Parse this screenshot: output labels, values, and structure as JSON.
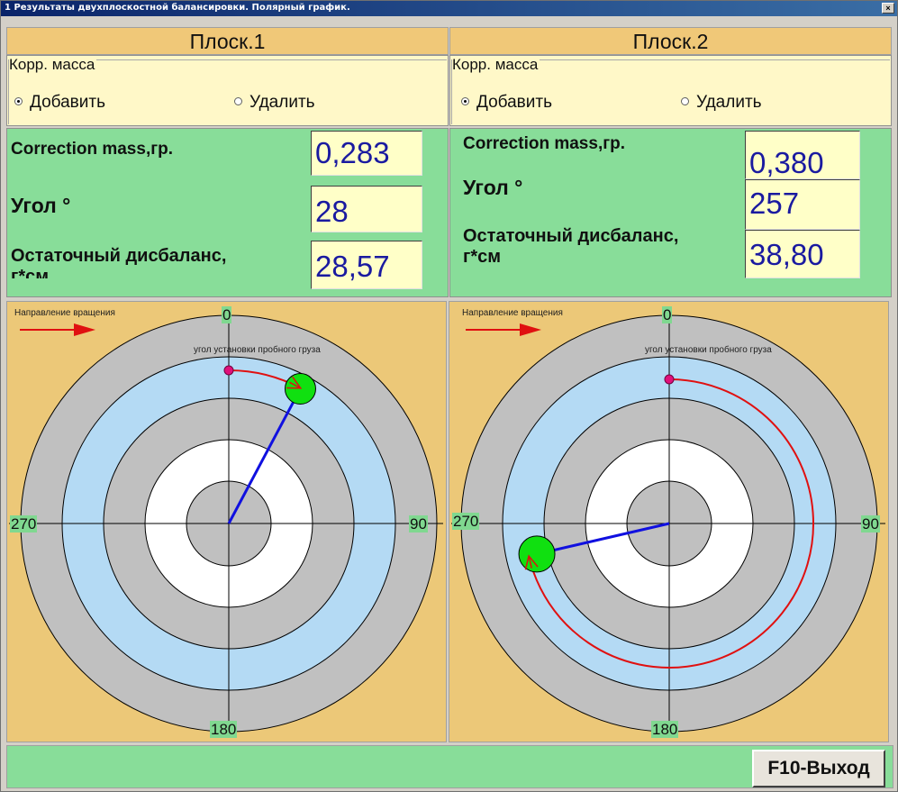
{
  "window": {
    "title": "1 Результаты двухплоскостной балансировки. Полярный график.",
    "close_glyph": "×"
  },
  "planes": [
    {
      "header": "Плоск.1",
      "mass_group_label": "Корр. масса",
      "options": {
        "add": "Добавить",
        "remove": "Удалить",
        "selected": "add"
      },
      "correction_label": "Correction mass,гр.",
      "correction_value": "0,283",
      "angle_label": "Угол   °",
      "angle_value": "28",
      "residual_label_line1": "Остаточный дисбаланс,",
      "residual_label_line2": "г*см",
      "residual_value": "28,57"
    },
    {
      "header": "Плоск.2",
      "mass_group_label": "Корр. масса",
      "options": {
        "add": "Добавить",
        "remove": "Удалить",
        "selected": "add"
      },
      "correction_label": "Correction mass,гр.",
      "correction_value": "0,380",
      "angle_label": "Угол   °",
      "angle_value": "257",
      "residual_label_line1": "Остаточный дисбаланс,",
      "residual_label_line2": "г*см",
      "residual_value": "38,80"
    }
  ],
  "polar": {
    "rotation_label": "Направление вращения",
    "trial_label": "угол установки пробного  груза",
    "angles": {
      "top": "0",
      "right": "90",
      "bottom": "180",
      "left": "270"
    },
    "colors": {
      "ring_gray": "#c0c0c0",
      "ring_blue": "#b4daf4",
      "ring_white": "#ffffff",
      "vector": "#1010e0",
      "arc": "#e01010",
      "weight": "#10e010",
      "trial_dot": "#e0107a"
    },
    "charts": [
      {
        "correction_angle_deg": 28,
        "trial_angle_deg": 0,
        "vector_ratio": 0.788
      },
      {
        "correction_angle_deg": 257,
        "trial_angle_deg": 0,
        "vector_ratio": 0.702
      }
    ]
  },
  "footer": {
    "exit_label": "F10-Выход"
  }
}
